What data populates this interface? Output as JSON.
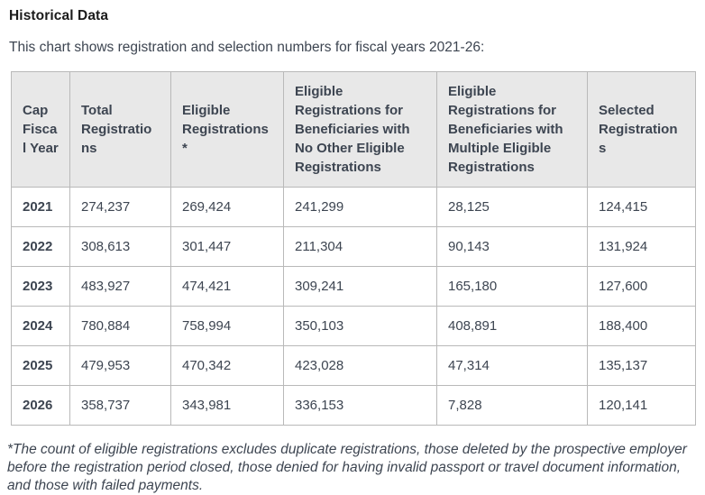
{
  "page": {
    "title": "Historical Data",
    "intro": "This chart shows registration and selection numbers for fiscal years 2021-26:",
    "footnote": "*The count of eligible registrations excludes duplicate registrations, those deleted by the prospective employer before the registration period closed, those denied for having invalid passport or travel document information, and those with failed payments."
  },
  "colors": {
    "header_bg": "#e8e8e8",
    "border": "#b9b9b9",
    "body_text": "#3d4551",
    "title_text": "#1b1b1b"
  },
  "chart_data": {
    "type": "table",
    "title": "Historical Data",
    "columns": [
      "Cap Fiscal Year",
      "Total Registrations",
      "Eligible Registrations*",
      "Eligible Registrations for Beneficiaries with No Other Eligible Registrations",
      "Eligible Registrations for Beneficiaries with Multiple Eligible Registrations",
      "Selected Registrations"
    ],
    "rows": [
      [
        "2021",
        "274,237",
        "269,424",
        "241,299",
        "28,125",
        "124,415"
      ],
      [
        "2022",
        "308,613",
        "301,447",
        "211,304",
        "90,143",
        "131,924"
      ],
      [
        "2023",
        "483,927",
        "474,421",
        "309,241",
        "165,180",
        "127,600"
      ],
      [
        "2024",
        "780,884",
        "758,994",
        "350,103",
        "408,891",
        "188,400"
      ],
      [
        "2025",
        "479,953",
        "470,342",
        "423,028",
        "47,314",
        "135,137"
      ],
      [
        "2026",
        "358,737",
        "343,981",
        "336,153",
        "7,828",
        "120,141"
      ]
    ]
  }
}
